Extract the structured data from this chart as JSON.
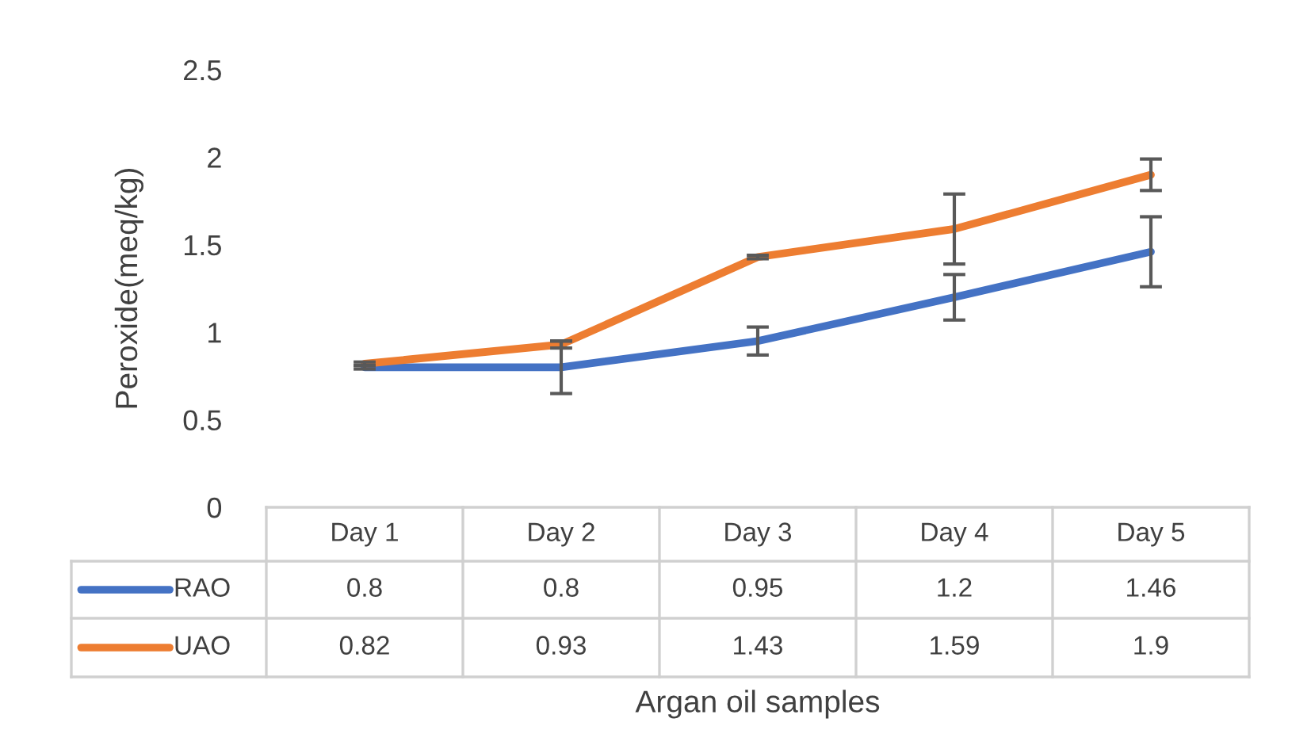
{
  "chart_data": {
    "type": "line",
    "annotations": [
      "Argan oil samples"
    ],
    "ylabel": "Peroxide(meq/kg)",
    "legend": "bottom left",
    "categories": [
      "Day 1",
      "Day 2",
      "Day 3",
      "Day 4",
      "Day 5"
    ],
    "series": [
      {
        "name": "RAO",
        "color": "#4472c4",
        "values": [
          0.8,
          0.8,
          0.95,
          1.2,
          1.46
        ],
        "errors": [
          0.01,
          0.15,
          0.08,
          0.13,
          0.2
        ]
      },
      {
        "name": "UAO",
        "color": "#ed7d31",
        "values": [
          0.82,
          0.93,
          1.43,
          1.59,
          1.9
        ],
        "errors": [
          0.01,
          0.02,
          0.01,
          0.2,
          0.09
        ]
      }
    ],
    "ylim": [
      0,
      2.5
    ],
    "yticks": [
      0,
      0.5,
      1,
      1.5,
      2,
      2.5
    ],
    "grid": false,
    "data_labels": true,
    "marker": "none",
    "line_style": "solid"
  }
}
